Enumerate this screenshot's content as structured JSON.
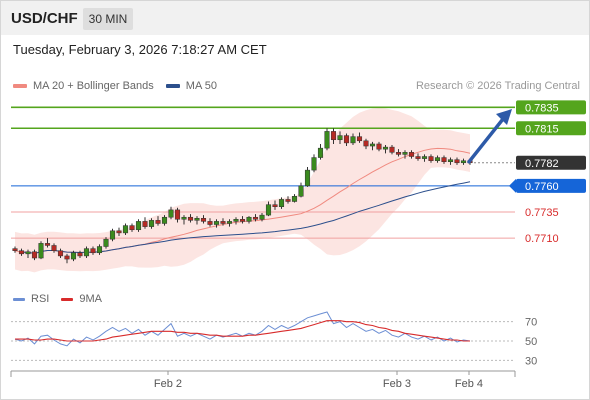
{
  "header": {
    "symbol": "USD/CHF",
    "timeframe": "30 MIN"
  },
  "datetime": "Tuesday, February 3, 2026 7:18:27 AM CET",
  "legend": [
    {
      "label": "MA 20 + Bollinger Bands",
      "color": "#f08a80"
    },
    {
      "label": "MA 50",
      "color": "#2c4f8c"
    }
  ],
  "credit": "Research © 2026 Trading Central",
  "levels": [
    {
      "label": "0.7835",
      "value": 0.7835,
      "type": "resistance",
      "color": "#54a51d"
    },
    {
      "label": "0.7815",
      "value": 0.7815,
      "type": "resistance",
      "color": "#54a51d"
    },
    {
      "label": "0.7782",
      "value": 0.7782,
      "type": "last",
      "color": "#333333"
    },
    {
      "label": "0.7760",
      "value": 0.776,
      "type": "pivot",
      "color": "#1565d8"
    },
    {
      "label": "0.7735",
      "value": 0.7735,
      "type": "support",
      "color": "#d82b2b"
    },
    {
      "label": "0.7710",
      "value": 0.771,
      "type": "support",
      "color": "#d82b2b"
    }
  ],
  "rsi_legend": [
    {
      "label": "RSI",
      "color": "#6c8fd4"
    },
    {
      "label": "9MA",
      "color": "#d82b2b"
    }
  ],
  "rsi_ticks": [
    "70",
    "50",
    "30"
  ],
  "x_ticks": [
    {
      "label": "Feb 2"
    },
    {
      "label": "Feb 3"
    },
    {
      "label": "Feb 4"
    }
  ],
  "chart_data": {
    "type": "candlestick",
    "ohlc": [
      [
        0.77,
        0.7702,
        0.7696,
        0.7698
      ],
      [
        0.7698,
        0.77,
        0.7693,
        0.7695
      ],
      [
        0.7695,
        0.7699,
        0.7691,
        0.7697
      ],
      [
        0.7697,
        0.7699,
        0.7689,
        0.7691
      ],
      [
        0.7691,
        0.7707,
        0.769,
        0.7705
      ],
      [
        0.7705,
        0.771,
        0.7701,
        0.7703
      ],
      [
        0.7703,
        0.7705,
        0.7696,
        0.7698
      ],
      [
        0.7698,
        0.77,
        0.7691,
        0.7693
      ],
      [
        0.7693,
        0.7695,
        0.7686,
        0.769
      ],
      [
        0.769,
        0.7698,
        0.7688,
        0.7696
      ],
      [
        0.7696,
        0.7698,
        0.7691,
        0.7693
      ],
      [
        0.7693,
        0.7702,
        0.7691,
        0.77
      ],
      [
        0.77,
        0.7702,
        0.7694,
        0.7696
      ],
      [
        0.7696,
        0.7704,
        0.7694,
        0.7702
      ],
      [
        0.7702,
        0.7711,
        0.77,
        0.7709
      ],
      [
        0.7709,
        0.7719,
        0.7707,
        0.7717
      ],
      [
        0.7717,
        0.772,
        0.7712,
        0.7715
      ],
      [
        0.7715,
        0.7724,
        0.7713,
        0.7722
      ],
      [
        0.7722,
        0.7724,
        0.7716,
        0.7718
      ],
      [
        0.7718,
        0.7728,
        0.7716,
        0.7726
      ],
      [
        0.7726,
        0.773,
        0.7719,
        0.7721
      ],
      [
        0.7721,
        0.7729,
        0.7719,
        0.7727
      ],
      [
        0.7727,
        0.7731,
        0.7722,
        0.7724
      ],
      [
        0.7724,
        0.7732,
        0.7722,
        0.773
      ],
      [
        0.773,
        0.774,
        0.7728,
        0.7737
      ],
      [
        0.7737,
        0.7739,
        0.7725,
        0.7728
      ],
      [
        0.7728,
        0.7732,
        0.7723,
        0.773
      ],
      [
        0.773,
        0.7733,
        0.7725,
        0.7727
      ],
      [
        0.7727,
        0.7731,
        0.7723,
        0.7729
      ],
      [
        0.7729,
        0.7732,
        0.7724,
        0.7726
      ],
      [
        0.7726,
        0.7729,
        0.7721,
        0.7723
      ],
      [
        0.7723,
        0.7728,
        0.772,
        0.7726
      ],
      [
        0.7726,
        0.7729,
        0.7722,
        0.7724
      ],
      [
        0.7724,
        0.7728,
        0.7721,
        0.7726
      ],
      [
        0.7726,
        0.773,
        0.7723,
        0.7728
      ],
      [
        0.7728,
        0.7731,
        0.7724,
        0.7726
      ],
      [
        0.7726,
        0.7731,
        0.7724,
        0.773
      ],
      [
        0.773,
        0.7733,
        0.7726,
        0.7728
      ],
      [
        0.7728,
        0.7734,
        0.7726,
        0.7732
      ],
      [
        0.7732,
        0.7745,
        0.7731,
        0.7742
      ],
      [
        0.7742,
        0.7746,
        0.7737,
        0.774
      ],
      [
        0.774,
        0.7749,
        0.7738,
        0.7747
      ],
      [
        0.7747,
        0.775,
        0.7743,
        0.7745
      ],
      [
        0.7745,
        0.7752,
        0.7744,
        0.775
      ],
      [
        0.775,
        0.7763,
        0.7749,
        0.776
      ],
      [
        0.776,
        0.7778,
        0.7759,
        0.7775
      ],
      [
        0.7775,
        0.779,
        0.7773,
        0.7787
      ],
      [
        0.7787,
        0.78,
        0.7785,
        0.7796
      ],
      [
        0.7796,
        0.7815,
        0.7794,
        0.7812
      ],
      [
        0.7812,
        0.7815,
        0.78,
        0.7804
      ],
      [
        0.7804,
        0.7812,
        0.78,
        0.7808
      ],
      [
        0.7808,
        0.781,
        0.7798,
        0.7801
      ],
      [
        0.7801,
        0.781,
        0.7799,
        0.7807
      ],
      [
        0.7807,
        0.7811,
        0.7801,
        0.7803
      ],
      [
        0.7803,
        0.7805,
        0.7795,
        0.7798
      ],
      [
        0.7798,
        0.7802,
        0.7794,
        0.78
      ],
      [
        0.78,
        0.7802,
        0.7793,
        0.7795
      ],
      [
        0.7795,
        0.7799,
        0.7791,
        0.7797
      ],
      [
        0.7797,
        0.7799,
        0.779,
        0.7792
      ],
      [
        0.7792,
        0.7795,
        0.7788,
        0.779
      ],
      [
        0.779,
        0.7794,
        0.7786,
        0.7792
      ],
      [
        0.7792,
        0.7794,
        0.7786,
        0.7788
      ],
      [
        0.7788,
        0.7791,
        0.7784,
        0.7786
      ],
      [
        0.7786,
        0.779,
        0.7783,
        0.7788
      ],
      [
        0.7788,
        0.779,
        0.7782,
        0.7784
      ],
      [
        0.7784,
        0.7789,
        0.7782,
        0.7787
      ],
      [
        0.7787,
        0.7789,
        0.7781,
        0.7783
      ],
      [
        0.7783,
        0.7787,
        0.778,
        0.7785
      ],
      [
        0.7785,
        0.7787,
        0.778,
        0.7782
      ],
      [
        0.7782,
        0.7786,
        0.778,
        0.7784
      ],
      [
        0.7784,
        0.7786,
        0.778,
        0.7782
      ]
    ],
    "price_range": [
      0.767,
      0.7842
    ],
    "rsi_range": [
      20,
      80
    ],
    "rsi": [
      52,
      50,
      53,
      47,
      55,
      56,
      51,
      47,
      45,
      52,
      48,
      54,
      51,
      55,
      60,
      64,
      60,
      63,
      58,
      62,
      56,
      60,
      56,
      62,
      68,
      55,
      58,
      55,
      58,
      55,
      52,
      56,
      54,
      56,
      58,
      55,
      58,
      56,
      60,
      66,
      62,
      66,
      63,
      66,
      70,
      74,
      76,
      78,
      80,
      68,
      70,
      64,
      68,
      64,
      60,
      62,
      58,
      61,
      56,
      54,
      58,
      54,
      52,
      55,
      51,
      54,
      50,
      53,
      49,
      51,
      50
    ],
    "rsi_ma": [
      52,
      52,
      52,
      51,
      51,
      52,
      52,
      51,
      50,
      50,
      50,
      50,
      50,
      51,
      52,
      54,
      55,
      56,
      57,
      58,
      59,
      60,
      60,
      60,
      60,
      59,
      59,
      58,
      58,
      57,
      56,
      56,
      55,
      55,
      55,
      55,
      56,
      56,
      57,
      58,
      59,
      60,
      61,
      62,
      63,
      65,
      67,
      69,
      71,
      71,
      71,
      70,
      70,
      69,
      67,
      66,
      64,
      63,
      61,
      60,
      58,
      57,
      56,
      55,
      54,
      53,
      52,
      51,
      51,
      50,
      50
    ]
  }
}
